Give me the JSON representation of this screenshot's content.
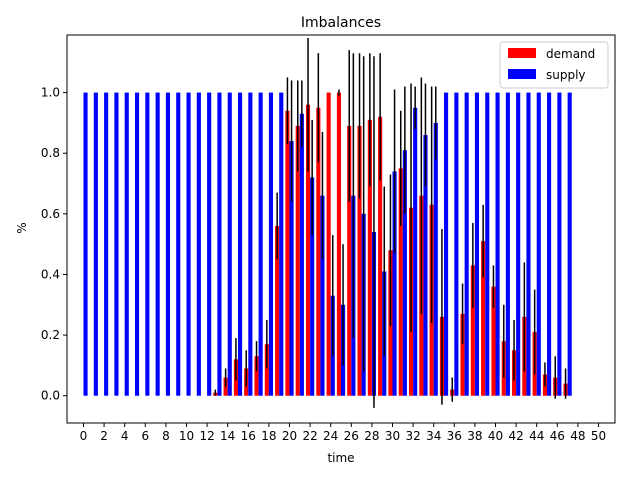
{
  "chart_data": {
    "type": "bar",
    "title": "Imbalances",
    "xlabel": "time",
    "ylabel": "%",
    "xlim": [
      -1.6,
      51.6
    ],
    "ylim": [
      -0.09,
      1.19
    ],
    "xticks": [
      "0",
      "2",
      "4",
      "6",
      "8",
      "10",
      "12",
      "14",
      "16",
      "18",
      "20",
      "22",
      "24",
      "26",
      "28",
      "30",
      "32",
      "34",
      "36",
      "38",
      "40",
      "42",
      "44",
      "46",
      "48",
      "50"
    ],
    "yticks": [
      "0.0",
      "0.2",
      "0.4",
      "0.6",
      "0.8",
      "1.0"
    ],
    "legend": {
      "position": "top-right",
      "entries": [
        "demand",
        "supply"
      ]
    },
    "x": [
      0,
      1,
      2,
      3,
      4,
      5,
      6,
      7,
      8,
      9,
      10,
      11,
      12,
      13,
      14,
      15,
      16,
      17,
      18,
      19,
      20,
      21,
      22,
      23,
      24,
      25,
      26,
      27,
      28,
      29,
      30,
      31,
      32,
      33,
      34,
      35,
      36,
      37,
      38,
      39,
      40,
      41,
      42,
      43,
      44,
      45,
      46,
      47
    ],
    "series": [
      {
        "name": "demand",
        "color": "#ff0000",
        "offset": -0.2,
        "values": [
          0,
          0,
          0,
          0,
          0,
          0,
          0,
          0,
          0,
          0,
          0,
          0,
          0,
          0.01,
          0.06,
          0.12,
          0.09,
          0.13,
          0.17,
          0.56,
          0.94,
          0.89,
          0.96,
          0.95,
          1.0,
          1.0,
          0.89,
          0.89,
          0.91,
          0.92,
          0.48,
          0.75,
          0.62,
          0.66,
          0.63,
          0.26,
          0.02,
          0.27,
          0.43,
          0.51,
          0.36,
          0.18,
          0.15,
          0.26,
          0.21,
          0.07,
          0.06,
          0.04
        ],
        "err": [
          0,
          0,
          0,
          0,
          0,
          0,
          0,
          0,
          0,
          0,
          0,
          0,
          0,
          0.01,
          0.03,
          0.07,
          0.06,
          0.05,
          0.08,
          0.11,
          0.11,
          0.15,
          0.22,
          0.18,
          0,
          0.01,
          0.25,
          0.24,
          0.22,
          0.21,
          0.25,
          0.19,
          0.41,
          0.39,
          0.39,
          0.29,
          0.04,
          0.1,
          0.14,
          0.12,
          0.07,
          0.12,
          0.1,
          0.18,
          0.14,
          0.04,
          0.07,
          0.05
        ]
      },
      {
        "name": "supply",
        "color": "#0000ff",
        "offset": 0.2,
        "values": [
          1,
          1,
          1,
          1,
          1,
          1,
          1,
          1,
          1,
          1,
          1,
          1,
          1,
          1,
          1,
          1,
          1,
          1,
          1,
          1,
          0.84,
          0.93,
          0.72,
          0.66,
          0.33,
          0.3,
          0.66,
          0.6,
          0.54,
          0.41,
          0.74,
          0.81,
          0.95,
          0.86,
          0.9,
          1,
          1,
          1,
          1,
          1,
          1,
          1,
          1,
          1,
          1,
          1,
          1,
          1
        ],
        "err": [
          0,
          0,
          0,
          0,
          0,
          0,
          0,
          0,
          0,
          0,
          0,
          0,
          0,
          0,
          0,
          0,
          0,
          0,
          0,
          0,
          0.2,
          0.11,
          0.19,
          0.21,
          0.2,
          0.2,
          0.47,
          0.52,
          0.58,
          0.28,
          0.27,
          0.21,
          0.07,
          0.17,
          0.12,
          0,
          0,
          0,
          0,
          0,
          0,
          0,
          0,
          0,
          0,
          0,
          0,
          0
        ]
      }
    ]
  }
}
